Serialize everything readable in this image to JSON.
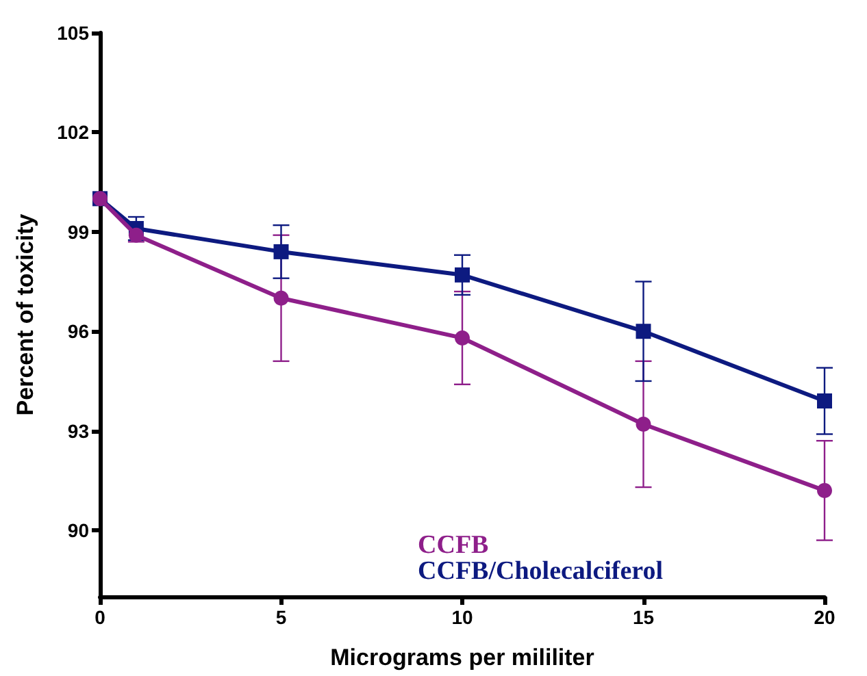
{
  "chart_data": {
    "type": "line",
    "xlabel": "Micrograms per mililiter",
    "ylabel": "Percent of toxicity",
    "x": [
      0,
      1,
      5,
      10,
      15,
      20
    ],
    "series": [
      {
        "name": "CCFB",
        "color": "#8e1f8a",
        "marker": "circle",
        "values": [
          100,
          98.9,
          97.0,
          95.8,
          93.2,
          91.2
        ],
        "errors": [
          null,
          0.2,
          1.9,
          1.4,
          1.9,
          1.5
        ]
      },
      {
        "name": "CCFB/Cholecalciferol",
        "color": "#0d1a80",
        "marker": "square",
        "values": [
          100,
          99.1,
          98.4,
          97.7,
          96.0,
          93.9
        ],
        "errors": [
          null,
          0.35,
          0.8,
          0.6,
          1.5,
          1.0
        ]
      }
    ],
    "xlim": [
      0,
      20
    ],
    "xticks": [
      0,
      5,
      10,
      15,
      20
    ],
    "ylim": [
      88,
      105
    ],
    "yticks": [
      90,
      93,
      96,
      99,
      102,
      105
    ],
    "grid": false,
    "legend": "bottom",
    "line_style": "solid"
  }
}
